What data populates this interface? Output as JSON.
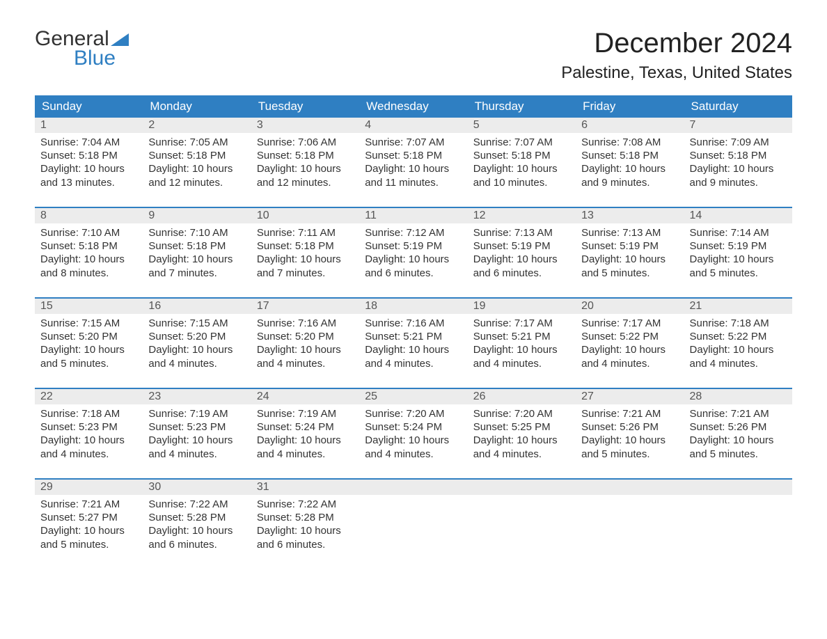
{
  "logo": {
    "text_general": "General",
    "text_blue": "Blue",
    "brand_color": "#2f7fc2"
  },
  "header": {
    "month_title": "December 2024",
    "location": "Palestine, Texas, United States"
  },
  "colors": {
    "header_bg": "#2f7fc2",
    "header_text": "#ffffff",
    "daynum_bg": "#ececec",
    "daynum_text": "#555555",
    "body_text": "#333333",
    "page_bg": "#ffffff",
    "row_sep": "#2f7fc2"
  },
  "calendar": {
    "columns": [
      "Sunday",
      "Monday",
      "Tuesday",
      "Wednesday",
      "Thursday",
      "Friday",
      "Saturday"
    ],
    "weeks": [
      [
        {
          "day": "1",
          "sunrise": "Sunrise: 7:04 AM",
          "sunset": "Sunset: 5:18 PM",
          "daylight1": "Daylight: 10 hours",
          "daylight2": "and 13 minutes."
        },
        {
          "day": "2",
          "sunrise": "Sunrise: 7:05 AM",
          "sunset": "Sunset: 5:18 PM",
          "daylight1": "Daylight: 10 hours",
          "daylight2": "and 12 minutes."
        },
        {
          "day": "3",
          "sunrise": "Sunrise: 7:06 AM",
          "sunset": "Sunset: 5:18 PM",
          "daylight1": "Daylight: 10 hours",
          "daylight2": "and 12 minutes."
        },
        {
          "day": "4",
          "sunrise": "Sunrise: 7:07 AM",
          "sunset": "Sunset: 5:18 PM",
          "daylight1": "Daylight: 10 hours",
          "daylight2": "and 11 minutes."
        },
        {
          "day": "5",
          "sunrise": "Sunrise: 7:07 AM",
          "sunset": "Sunset: 5:18 PM",
          "daylight1": "Daylight: 10 hours",
          "daylight2": "and 10 minutes."
        },
        {
          "day": "6",
          "sunrise": "Sunrise: 7:08 AM",
          "sunset": "Sunset: 5:18 PM",
          "daylight1": "Daylight: 10 hours",
          "daylight2": "and 9 minutes."
        },
        {
          "day": "7",
          "sunrise": "Sunrise: 7:09 AM",
          "sunset": "Sunset: 5:18 PM",
          "daylight1": "Daylight: 10 hours",
          "daylight2": "and 9 minutes."
        }
      ],
      [
        {
          "day": "8",
          "sunrise": "Sunrise: 7:10 AM",
          "sunset": "Sunset: 5:18 PM",
          "daylight1": "Daylight: 10 hours",
          "daylight2": "and 8 minutes."
        },
        {
          "day": "9",
          "sunrise": "Sunrise: 7:10 AM",
          "sunset": "Sunset: 5:18 PM",
          "daylight1": "Daylight: 10 hours",
          "daylight2": "and 7 minutes."
        },
        {
          "day": "10",
          "sunrise": "Sunrise: 7:11 AM",
          "sunset": "Sunset: 5:18 PM",
          "daylight1": "Daylight: 10 hours",
          "daylight2": "and 7 minutes."
        },
        {
          "day": "11",
          "sunrise": "Sunrise: 7:12 AM",
          "sunset": "Sunset: 5:19 PM",
          "daylight1": "Daylight: 10 hours",
          "daylight2": "and 6 minutes."
        },
        {
          "day": "12",
          "sunrise": "Sunrise: 7:13 AM",
          "sunset": "Sunset: 5:19 PM",
          "daylight1": "Daylight: 10 hours",
          "daylight2": "and 6 minutes."
        },
        {
          "day": "13",
          "sunrise": "Sunrise: 7:13 AM",
          "sunset": "Sunset: 5:19 PM",
          "daylight1": "Daylight: 10 hours",
          "daylight2": "and 5 minutes."
        },
        {
          "day": "14",
          "sunrise": "Sunrise: 7:14 AM",
          "sunset": "Sunset: 5:19 PM",
          "daylight1": "Daylight: 10 hours",
          "daylight2": "and 5 minutes."
        }
      ],
      [
        {
          "day": "15",
          "sunrise": "Sunrise: 7:15 AM",
          "sunset": "Sunset: 5:20 PM",
          "daylight1": "Daylight: 10 hours",
          "daylight2": "and 5 minutes."
        },
        {
          "day": "16",
          "sunrise": "Sunrise: 7:15 AM",
          "sunset": "Sunset: 5:20 PM",
          "daylight1": "Daylight: 10 hours",
          "daylight2": "and 4 minutes."
        },
        {
          "day": "17",
          "sunrise": "Sunrise: 7:16 AM",
          "sunset": "Sunset: 5:20 PM",
          "daylight1": "Daylight: 10 hours",
          "daylight2": "and 4 minutes."
        },
        {
          "day": "18",
          "sunrise": "Sunrise: 7:16 AM",
          "sunset": "Sunset: 5:21 PM",
          "daylight1": "Daylight: 10 hours",
          "daylight2": "and 4 minutes."
        },
        {
          "day": "19",
          "sunrise": "Sunrise: 7:17 AM",
          "sunset": "Sunset: 5:21 PM",
          "daylight1": "Daylight: 10 hours",
          "daylight2": "and 4 minutes."
        },
        {
          "day": "20",
          "sunrise": "Sunrise: 7:17 AM",
          "sunset": "Sunset: 5:22 PM",
          "daylight1": "Daylight: 10 hours",
          "daylight2": "and 4 minutes."
        },
        {
          "day": "21",
          "sunrise": "Sunrise: 7:18 AM",
          "sunset": "Sunset: 5:22 PM",
          "daylight1": "Daylight: 10 hours",
          "daylight2": "and 4 minutes."
        }
      ],
      [
        {
          "day": "22",
          "sunrise": "Sunrise: 7:18 AM",
          "sunset": "Sunset: 5:23 PM",
          "daylight1": "Daylight: 10 hours",
          "daylight2": "and 4 minutes."
        },
        {
          "day": "23",
          "sunrise": "Sunrise: 7:19 AM",
          "sunset": "Sunset: 5:23 PM",
          "daylight1": "Daylight: 10 hours",
          "daylight2": "and 4 minutes."
        },
        {
          "day": "24",
          "sunrise": "Sunrise: 7:19 AM",
          "sunset": "Sunset: 5:24 PM",
          "daylight1": "Daylight: 10 hours",
          "daylight2": "and 4 minutes."
        },
        {
          "day": "25",
          "sunrise": "Sunrise: 7:20 AM",
          "sunset": "Sunset: 5:24 PM",
          "daylight1": "Daylight: 10 hours",
          "daylight2": "and 4 minutes."
        },
        {
          "day": "26",
          "sunrise": "Sunrise: 7:20 AM",
          "sunset": "Sunset: 5:25 PM",
          "daylight1": "Daylight: 10 hours",
          "daylight2": "and 4 minutes."
        },
        {
          "day": "27",
          "sunrise": "Sunrise: 7:21 AM",
          "sunset": "Sunset: 5:26 PM",
          "daylight1": "Daylight: 10 hours",
          "daylight2": "and 5 minutes."
        },
        {
          "day": "28",
          "sunrise": "Sunrise: 7:21 AM",
          "sunset": "Sunset: 5:26 PM",
          "daylight1": "Daylight: 10 hours",
          "daylight2": "and 5 minutes."
        }
      ],
      [
        {
          "day": "29",
          "sunrise": "Sunrise: 7:21 AM",
          "sunset": "Sunset: 5:27 PM",
          "daylight1": "Daylight: 10 hours",
          "daylight2": "and 5 minutes."
        },
        {
          "day": "30",
          "sunrise": "Sunrise: 7:22 AM",
          "sunset": "Sunset: 5:28 PM",
          "daylight1": "Daylight: 10 hours",
          "daylight2": "and 6 minutes."
        },
        {
          "day": "31",
          "sunrise": "Sunrise: 7:22 AM",
          "sunset": "Sunset: 5:28 PM",
          "daylight1": "Daylight: 10 hours",
          "daylight2": "and 6 minutes."
        },
        null,
        null,
        null,
        null
      ]
    ]
  }
}
